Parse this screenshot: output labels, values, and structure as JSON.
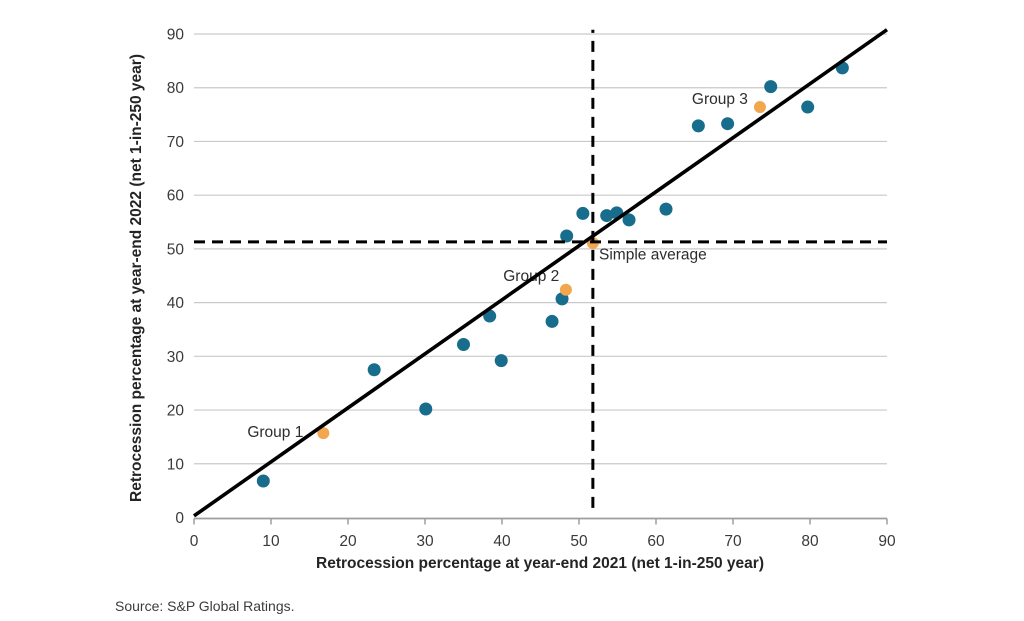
{
  "chart_data": {
    "type": "scatter",
    "title": "",
    "xlabel": "Retrocession percentage at year-end 2021 (net 1-in-250 year)",
    "ylabel": "Retrocession percentage at year-end 2022 (net 1-in-250 year)",
    "xlim": [
      0,
      90
    ],
    "ylim": [
      0,
      90
    ],
    "xticks": [
      0,
      10,
      20,
      30,
      40,
      50,
      60,
      70,
      80,
      90
    ],
    "yticks": [
      0,
      10,
      20,
      30,
      40,
      50,
      60,
      70,
      80,
      90
    ],
    "grid": "horizontal-only",
    "legend": "none",
    "colors": {
      "points_primary": "#186C8C",
      "points_highlight": "#F2A64E",
      "gridline": "#C9C9C9",
      "axis": "#9E9E9E",
      "reference": "#000000"
    },
    "series": [
      {
        "id": "reinsurers-blue",
        "color": "#186C8C",
        "marker_radius": 6.5,
        "points": [
          [
            9.0,
            6.8
          ],
          [
            23.4,
            27.5
          ],
          [
            30.1,
            20.2
          ],
          [
            35.0,
            32.2
          ],
          [
            38.4,
            37.5
          ],
          [
            39.9,
            29.2
          ],
          [
            46.5,
            36.5
          ],
          [
            47.8,
            40.7
          ],
          [
            48.4,
            52.4
          ],
          [
            50.5,
            56.6
          ],
          [
            53.6,
            56.2
          ],
          [
            54.9,
            56.7
          ],
          [
            56.5,
            55.4
          ],
          [
            61.3,
            57.4
          ],
          [
            65.5,
            72.9
          ],
          [
            69.3,
            73.3
          ],
          [
            74.9,
            80.2
          ],
          [
            79.7,
            76.4
          ],
          [
            84.2,
            83.7
          ]
        ]
      },
      {
        "id": "groups-orange",
        "color": "#F2A64E",
        "marker_radius": 6,
        "points": [
          [
            16.8,
            15.7
          ],
          [
            48.3,
            42.4
          ],
          [
            51.8,
            51.1
          ],
          [
            73.5,
            76.4
          ]
        ]
      }
    ],
    "reference_lines": [
      {
        "id": "identity-line",
        "style": "solid",
        "color": "#000000",
        "width": 3.6,
        "dash": "",
        "from": [
          0,
          0.3
        ],
        "to": [
          90,
          90.8
        ]
      },
      {
        "id": "average-horizontal-line",
        "style": "dashed",
        "color": "#000000",
        "width": 3,
        "dash": "11 7",
        "from": [
          0,
          51.3
        ],
        "to": [
          90,
          51.3
        ]
      },
      {
        "id": "average-vertical-line",
        "style": "dashed",
        "color": "#000000",
        "width": 3,
        "dash": "11 8",
        "from": [
          51.8,
          1.8
        ],
        "to": [
          51.8,
          90.8
        ]
      }
    ],
    "annotations": [
      {
        "label": "Group 1",
        "x": 14.2,
        "y": 15.0,
        "anchor": "end"
      },
      {
        "label": "Group 2",
        "x": 43.8,
        "y": 44.0,
        "anchor": "middle"
      },
      {
        "label": "Group 3",
        "x": 68.3,
        "y": 77.0,
        "anchor": "middle"
      },
      {
        "label": "Simple average",
        "x": 52.6,
        "y": 48.0,
        "anchor": "start"
      }
    ]
  },
  "source": "Source: S&P Global Ratings."
}
